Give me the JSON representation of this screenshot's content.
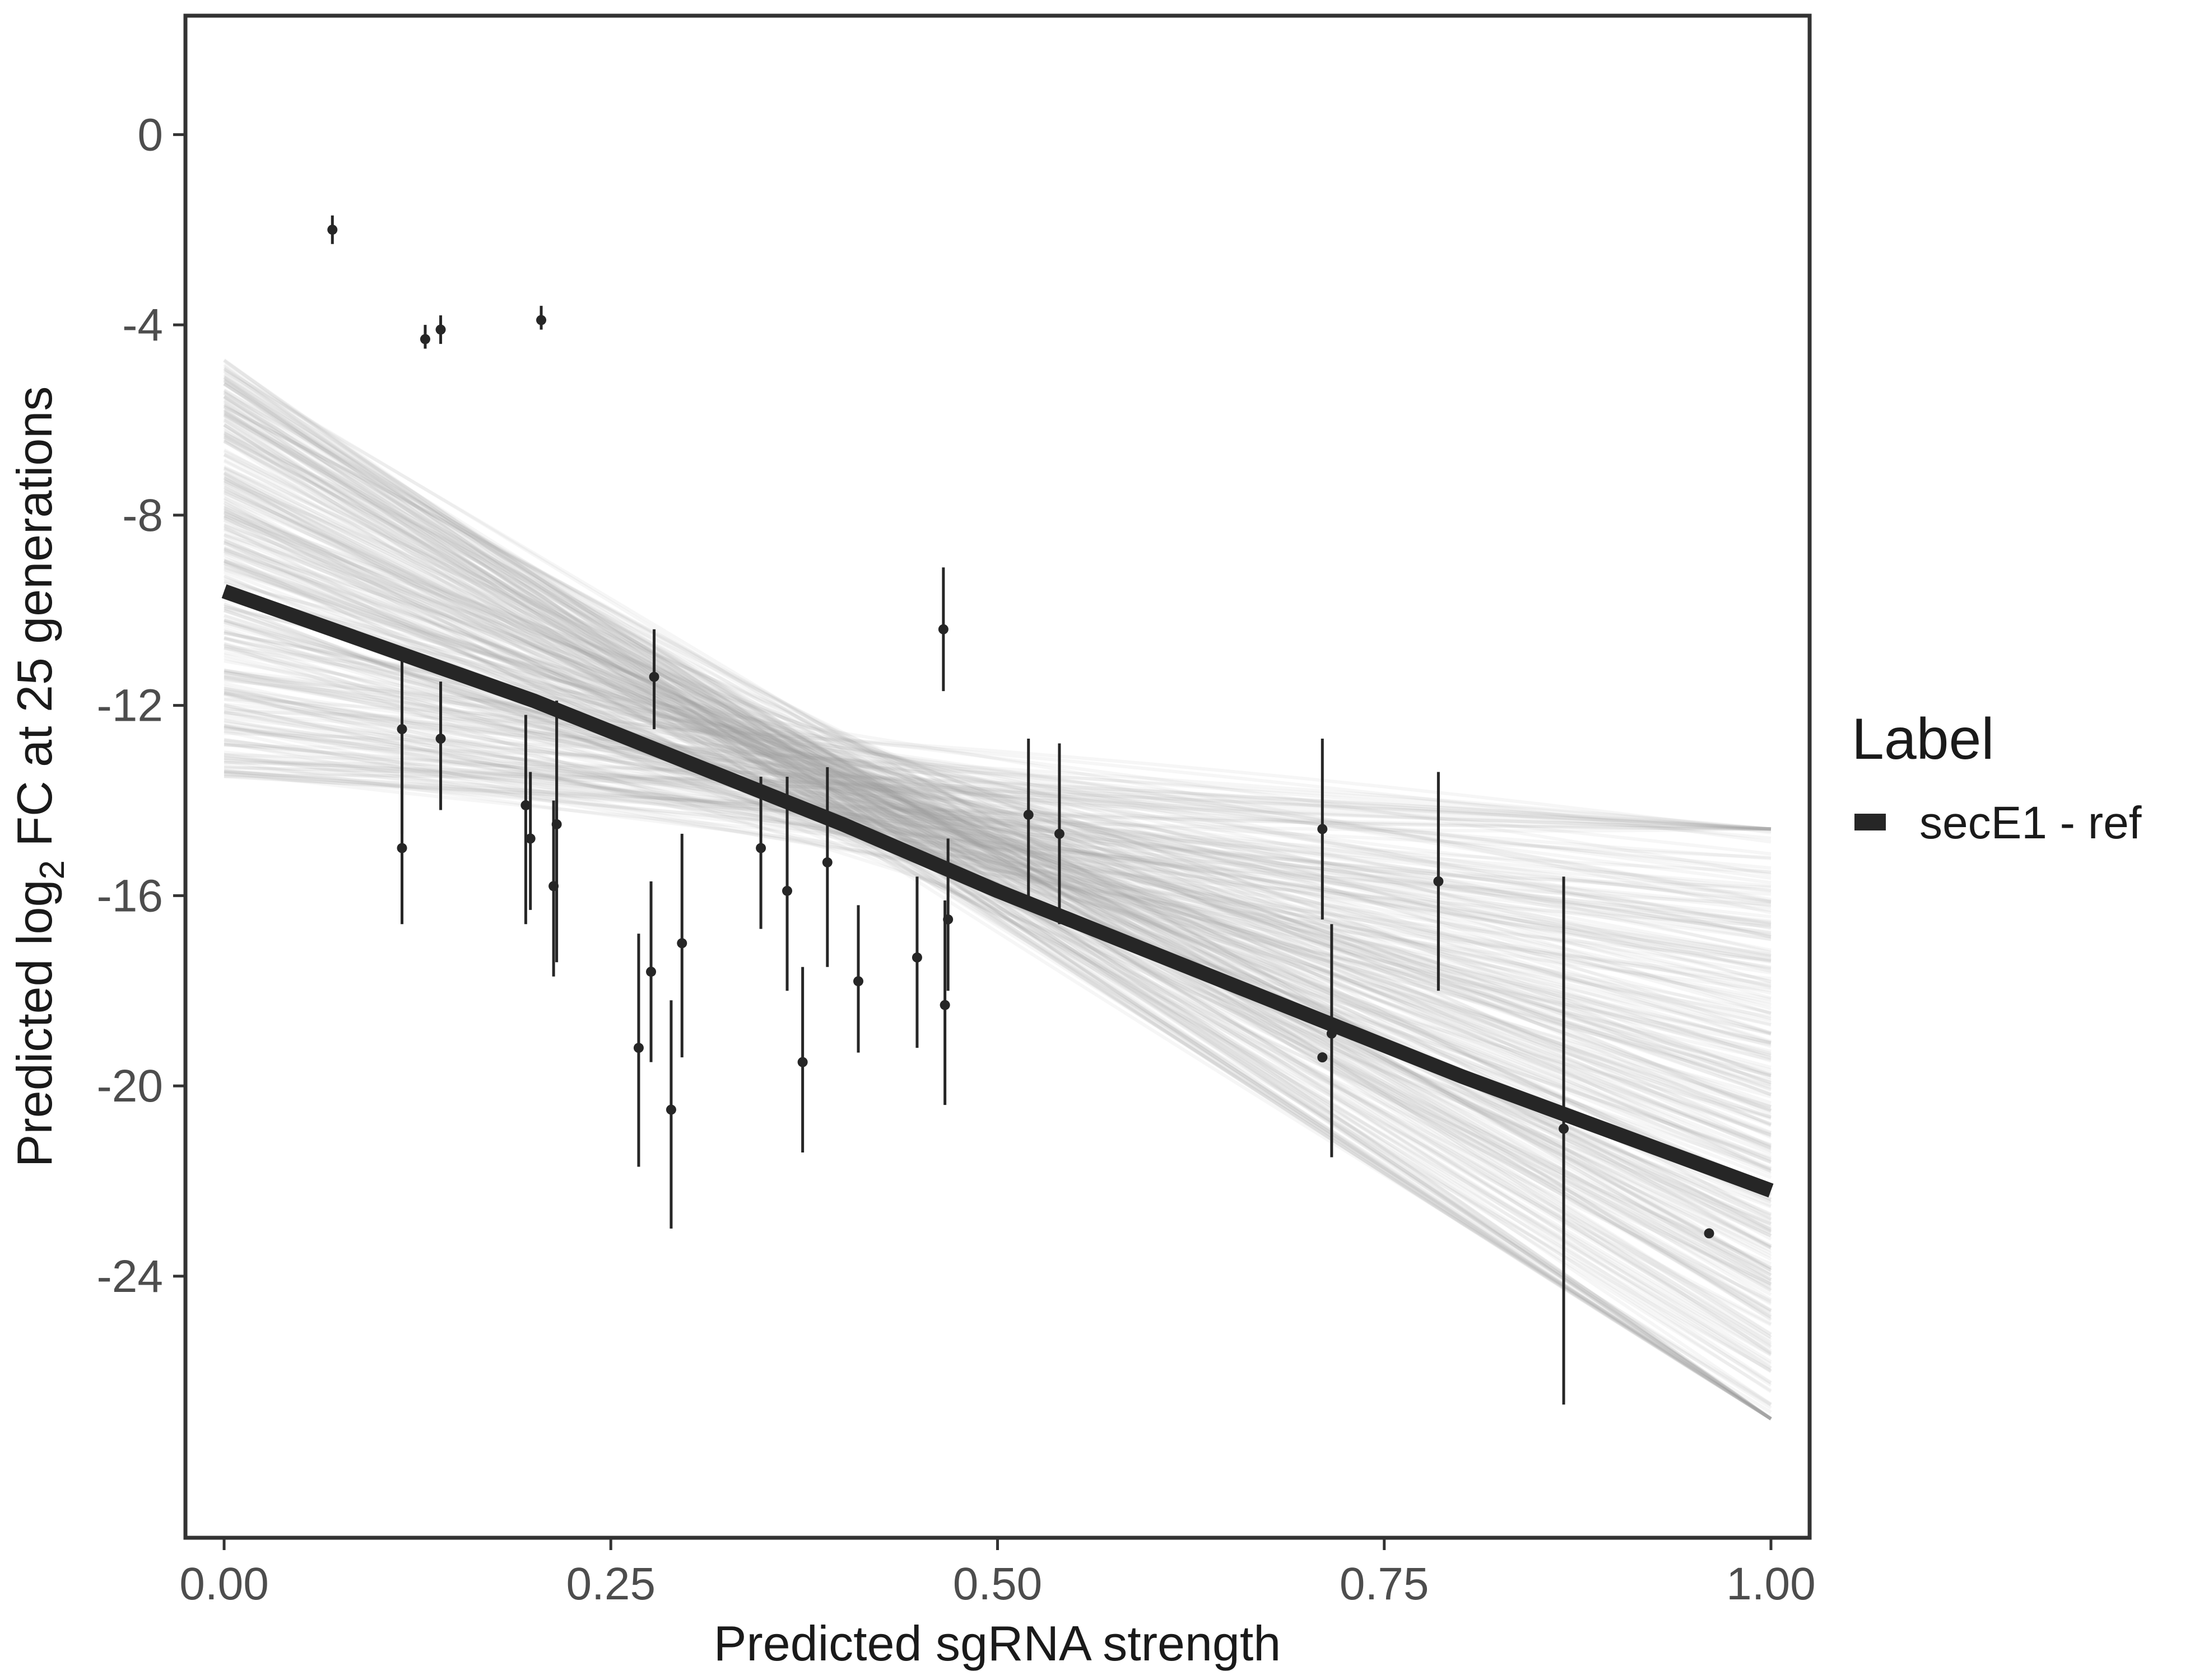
{
  "chart_data": {
    "type": "scatter",
    "xlabel": "Predicted sgRNA strength",
    "ylabel_parts": {
      "prefix": "Predicted  log",
      "subscript": "2",
      "suffix": " FC at 25 generations"
    },
    "x_ticks": [
      "0.00",
      "0.25",
      "0.50",
      "0.75",
      "1.00"
    ],
    "y_ticks": [
      "0",
      "-4",
      "-8",
      "-12",
      "-16",
      "-20",
      "-24"
    ],
    "xlim": [
      -0.025,
      1.025
    ],
    "ylim": [
      -29.5,
      2.5
    ],
    "grid": false,
    "legend": {
      "title": "Label",
      "position": "right",
      "items": [
        {
          "label": "secE1 - ref",
          "color": "#262626"
        }
      ]
    },
    "fit_line": {
      "label": "secE1 - ref",
      "color": "#262626",
      "x": [
        0,
        0.2,
        0.4,
        0.5,
        0.6,
        0.8,
        1.0
      ],
      "y": [
        -9.6,
        -11.9,
        -14.5,
        -15.9,
        -17.2,
        -19.8,
        -22.2
      ]
    },
    "posterior_band": {
      "color": "#9e9e9e",
      "intercept_range": [
        -13.5,
        -4.7
      ],
      "endpoint_range": [
        -27.0,
        -14.6
      ],
      "n_draws": 320
    },
    "points": [
      {
        "x": 0.07,
        "y": -2.0,
        "ymin": -2.3,
        "ymax": -1.7
      },
      {
        "x": 0.115,
        "y": -12.5,
        "ymin": -14.7,
        "ymax": -10.9
      },
      {
        "x": 0.115,
        "y": -15.0,
        "ymin": -16.6,
        "ymax": -13.1
      },
      {
        "x": 0.13,
        "y": -4.3,
        "ymin": -4.5,
        "ymax": -4.0
      },
      {
        "x": 0.14,
        "y": -4.1,
        "ymin": -4.4,
        "ymax": -3.8
      },
      {
        "x": 0.14,
        "y": -12.7,
        "ymin": -14.2,
        "ymax": -11.5
      },
      {
        "x": 0.195,
        "y": -14.1,
        "ymin": -16.6,
        "ymax": -12.2
      },
      {
        "x": 0.198,
        "y": -14.8,
        "ymin": -16.3,
        "ymax": -13.4
      },
      {
        "x": 0.205,
        "y": -3.9,
        "ymin": -4.1,
        "ymax": -3.6
      },
      {
        "x": 0.213,
        "y": -15.8,
        "ymin": -17.7,
        "ymax": -14.0
      },
      {
        "x": 0.215,
        "y": -14.5,
        "ymin": -17.4,
        "ymax": -11.9
      },
      {
        "x": 0.268,
        "y": -19.2,
        "ymin": -21.7,
        "ymax": -16.8
      },
      {
        "x": 0.276,
        "y": -17.6,
        "ymin": -19.5,
        "ymax": -15.7
      },
      {
        "x": 0.278,
        "y": -11.4,
        "ymin": -12.5,
        "ymax": -10.4
      },
      {
        "x": 0.289,
        "y": -20.5,
        "ymin": -23.0,
        "ymax": -18.2
      },
      {
        "x": 0.296,
        "y": -17.0,
        "ymin": -19.4,
        "ymax": -14.7
      },
      {
        "x": 0.347,
        "y": -15.0,
        "ymin": -16.7,
        "ymax": -13.5
      },
      {
        "x": 0.364,
        "y": -15.9,
        "ymin": -18.0,
        "ymax": -13.5
      },
      {
        "x": 0.374,
        "y": -19.5,
        "ymin": -21.4,
        "ymax": -17.5
      },
      {
        "x": 0.39,
        "y": -15.3,
        "ymin": -17.5,
        "ymax": -13.3
      },
      {
        "x": 0.41,
        "y": -17.8,
        "ymin": -19.3,
        "ymax": -16.2
      },
      {
        "x": 0.448,
        "y": -17.3,
        "ymin": -19.2,
        "ymax": -15.6
      },
      {
        "x": 0.465,
        "y": -10.4,
        "ymin": -11.7,
        "ymax": -9.1
      },
      {
        "x": 0.466,
        "y": -18.3,
        "ymin": -20.4,
        "ymax": -16.1
      },
      {
        "x": 0.468,
        "y": -16.5,
        "ymin": -18.0,
        "ymax": -14.8
      },
      {
        "x": 0.52,
        "y": -14.3,
        "ymin": -16.3,
        "ymax": -12.7
      },
      {
        "x": 0.54,
        "y": -14.7,
        "ymin": -16.6,
        "ymax": -12.8
      },
      {
        "x": 0.71,
        "y": -14.6,
        "ymin": -16.5,
        "ymax": -12.7
      },
      {
        "x": 0.71,
        "y": -19.4,
        "ymin": -19.4,
        "ymax": -19.4
      },
      {
        "x": 0.716,
        "y": -18.9,
        "ymin": -21.5,
        "ymax": -16.6
      },
      {
        "x": 0.785,
        "y": -15.7,
        "ymin": -18.0,
        "ymax": -13.4
      },
      {
        "x": 0.866,
        "y": -20.9,
        "ymin": -26.7,
        "ymax": -15.6
      },
      {
        "x": 0.96,
        "y": -23.1,
        "ymin": -23.1,
        "ymax": -23.1
      }
    ]
  }
}
